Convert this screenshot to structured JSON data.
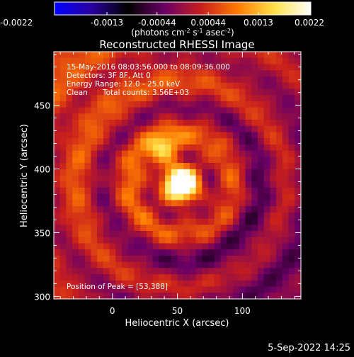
{
  "chart_data": {
    "type": "heatmap",
    "title": "Reconstructed RHESSI Image",
    "xlabel": "Heliocentric X (arcsec)",
    "ylabel": "Heliocentric Y (arcsec)",
    "xlim": [
      -45,
      145
    ],
    "ylim": [
      298,
      492
    ],
    "xticks": [
      0,
      50,
      100
    ],
    "yticks": [
      300,
      350,
      400,
      450
    ],
    "colorbar": {
      "label_prefix": "(photons cm",
      "label_sup1": "-2",
      "label_mid1": " s",
      "label_sup2": "-1",
      "label_mid2": " asec",
      "label_sup3": "-2",
      "label_suffix": ")",
      "min": -0.0022,
      "max": 0.0022,
      "tick_labels": [
        "-0.0022",
        "-0.0013",
        "-0.00044",
        "0.00044",
        "0.0013",
        "0.0022"
      ],
      "tick_values": [
        -0.0022,
        -0.0013,
        -0.00044,
        0.00044,
        0.0013,
        0.0022
      ],
      "colors": [
        "#0000ff",
        "#2a00a0",
        "#000000",
        "#6a0066",
        "#c81e1e",
        "#ff7a00",
        "#ffe14a",
        "#ffffff"
      ]
    },
    "annotations": {
      "line1": "15-May-2016 08:03:56.000 to 08:09:36.000",
      "line2": "Detectors: 3F 8F, Att 0",
      "line3": "Energy Range: 12.0 - 25.0 keV",
      "line4_left": "Clean",
      "line4_right": "Total counts: 3.56E+03",
      "peak": "Position of Peak = [53,388]"
    },
    "peak": [
      53,
      388
    ]
  },
  "footer": {
    "date": "5-Sep-2022 14:25"
  }
}
